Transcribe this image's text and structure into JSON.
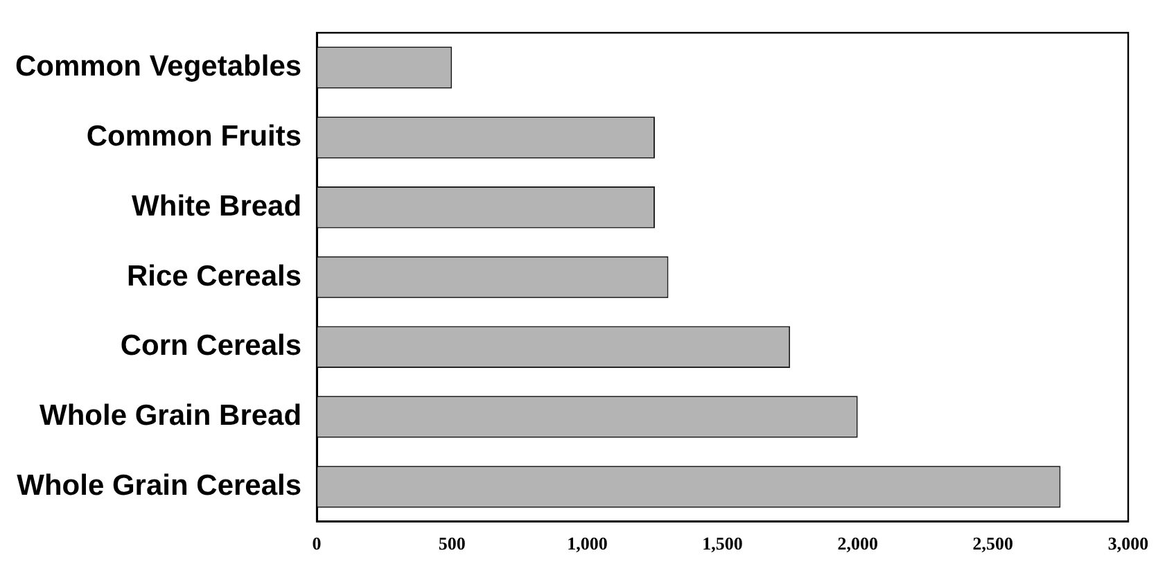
{
  "chart_data": {
    "type": "bar",
    "orientation": "horizontal",
    "categories": [
      "Common Vegetables",
      "Common Fruits",
      "White Bread",
      "Rice Cereals",
      "Corn Cereals",
      "Whole Grain Bread",
      "Whole Grain Cereals"
    ],
    "values": [
      500,
      1250,
      1250,
      1300,
      1750,
      2000,
      2750
    ],
    "color": "#b4b4b4",
    "xlim": [
      0,
      3000
    ],
    "xticks": [
      {
        "value": 0,
        "label": "0"
      },
      {
        "value": 500,
        "label": "500"
      },
      {
        "value": 1000,
        "label": "1,000"
      },
      {
        "value": 1500,
        "label": "1,500"
      },
      {
        "value": 2000,
        "label": "2,000"
      },
      {
        "value": 2500,
        "label": "2,500"
      },
      {
        "value": 3000,
        "label": "3,000"
      }
    ],
    "grid": false
  }
}
